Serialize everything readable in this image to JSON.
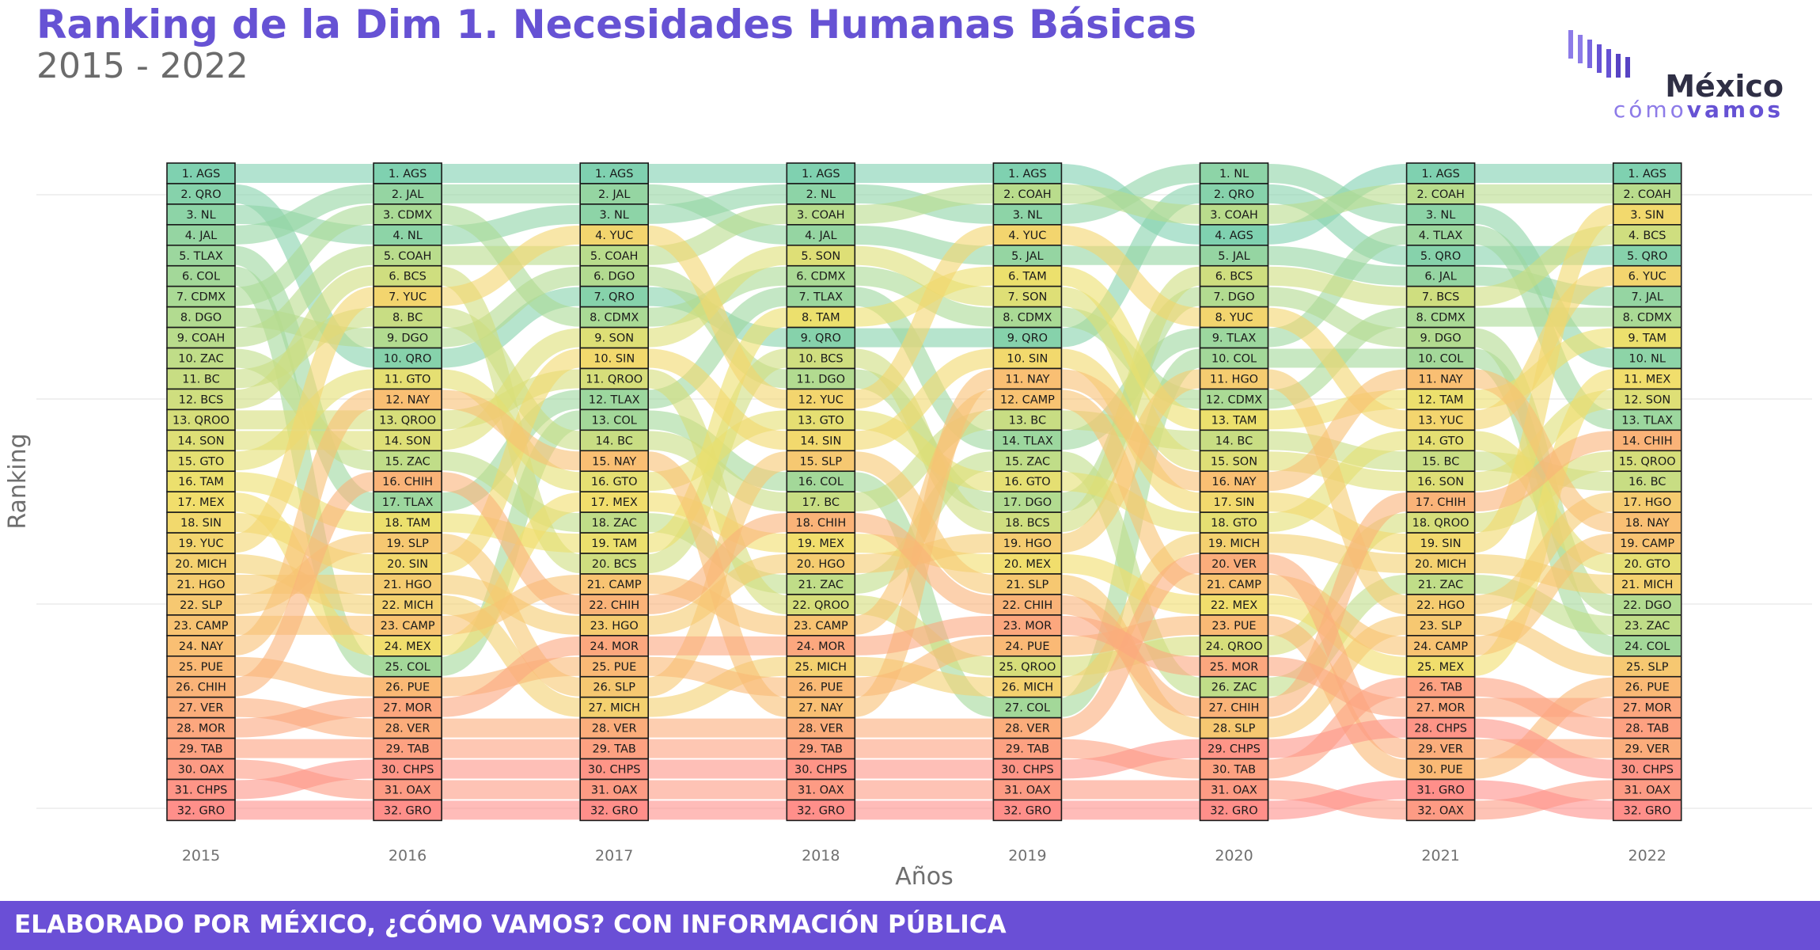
{
  "header": {
    "title": "Ranking de la Dim 1. Necesidades Humanas Básicas",
    "subtitle": "2015 - 2022"
  },
  "logo": {
    "line1": "México",
    "line2_a": "cómo",
    "line2_b": "vamos",
    "colors": [
      "#8d7be8",
      "#6652d4",
      "#3b3b5c"
    ]
  },
  "footer": {
    "text": "ELABORADO POR MÉXICO, ¿CÓMO VAMOS? CON INFORMACIÓN PÚBLICA",
    "color": "#6a4fd6"
  },
  "chart_data": {
    "type": "bump",
    "xlabel": "Años",
    "ylabel": "Ranking",
    "years": [
      "2015",
      "2016",
      "2017",
      "2018",
      "2019",
      "2020",
      "2021",
      "2022"
    ],
    "rankings": [
      [
        "AGS",
        "QRO",
        "NL",
        "JAL",
        "TLAX",
        "COL",
        "CDMX",
        "DGO",
        "COAH",
        "ZAC",
        "BC",
        "BCS",
        "QROO",
        "SON",
        "GTO",
        "TAM",
        "MEX",
        "SIN",
        "YUC",
        "MICH",
        "HGO",
        "SLP",
        "CAMP",
        "NAY",
        "PUE",
        "CHIH",
        "VER",
        "MOR",
        "TAB",
        "OAX",
        "CHPS",
        "GRO"
      ],
      [
        "AGS",
        "JAL",
        "CDMX",
        "NL",
        "COAH",
        "BCS",
        "YUC",
        "BC",
        "DGO",
        "QRO",
        "GTO",
        "NAY",
        "QROO",
        "SON",
        "ZAC",
        "CHIH",
        "TLAX",
        "TAM",
        "SLP",
        "SIN",
        "HGO",
        "MICH",
        "CAMP",
        "MEX",
        "COL",
        "PUE",
        "MOR",
        "VER",
        "TAB",
        "CHPS",
        "OAX",
        "GRO"
      ],
      [
        "AGS",
        "JAL",
        "NL",
        "YUC",
        "COAH",
        "DGO",
        "QRO",
        "CDMX",
        "SON",
        "SIN",
        "QROO",
        "TLAX",
        "COL",
        "BC",
        "NAY",
        "GTO",
        "MEX",
        "ZAC",
        "TAM",
        "BCS",
        "CAMP",
        "CHIH",
        "HGO",
        "MOR",
        "PUE",
        "SLP",
        "MICH",
        "VER",
        "TAB",
        "CHPS",
        "OAX",
        "GRO"
      ],
      [
        "AGS",
        "NL",
        "COAH",
        "JAL",
        "SON",
        "CDMX",
        "TLAX",
        "TAM",
        "QRO",
        "BCS",
        "DGO",
        "YUC",
        "GTO",
        "SIN",
        "SLP",
        "COL",
        "BC",
        "CHIH",
        "MEX",
        "HGO",
        "ZAC",
        "QROO",
        "CAMP",
        "MOR",
        "MICH",
        "PUE",
        "NAY",
        "VER",
        "TAB",
        "CHPS",
        "OAX",
        "GRO"
      ],
      [
        "AGS",
        "COAH",
        "NL",
        "YUC",
        "JAL",
        "TAM",
        "SON",
        "CDMX",
        "QRO",
        "SIN",
        "NAY",
        "CAMP",
        "BC",
        "TLAX",
        "ZAC",
        "GTO",
        "DGO",
        "BCS",
        "HGO",
        "MEX",
        "SLP",
        "CHIH",
        "MOR",
        "PUE",
        "QROO",
        "MICH",
        "COL",
        "VER",
        "TAB",
        "CHPS",
        "OAX",
        "GRO"
      ],
      [
        "NL",
        "QRO",
        "COAH",
        "AGS",
        "JAL",
        "BCS",
        "DGO",
        "YUC",
        "TLAX",
        "COL",
        "HGO",
        "CDMX",
        "TAM",
        "BC",
        "SON",
        "NAY",
        "SIN",
        "GTO",
        "MICH",
        "VER",
        "CAMP",
        "MEX",
        "PUE",
        "QROO",
        "MOR",
        "ZAC",
        "CHIH",
        "SLP",
        "CHPS",
        "TAB",
        "OAX",
        "GRO"
      ],
      [
        "AGS",
        "COAH",
        "NL",
        "TLAX",
        "QRO",
        "JAL",
        "BCS",
        "CDMX",
        "DGO",
        "COL",
        "NAY",
        "TAM",
        "YUC",
        "GTO",
        "BC",
        "SON",
        "CHIH",
        "QROO",
        "SIN",
        "MICH",
        "ZAC",
        "HGO",
        "SLP",
        "CAMP",
        "MEX",
        "TAB",
        "MOR",
        "CHPS",
        "VER",
        "PUE",
        "GRO",
        "OAX"
      ],
      [
        "AGS",
        "COAH",
        "SIN",
        "BCS",
        "QRO",
        "YUC",
        "JAL",
        "CDMX",
        "TAM",
        "NL",
        "MEX",
        "SON",
        "TLAX",
        "CHIH",
        "QROO",
        "BC",
        "HGO",
        "NAY",
        "CAMP",
        "GTO",
        "MICH",
        "DGO",
        "ZAC",
        "COL",
        "SLP",
        "PUE",
        "MOR",
        "TAB",
        "VER",
        "CHPS",
        "OAX",
        "GRO"
      ]
    ],
    "color_scale": [
      "#7fd1b0",
      "#b7dc8d",
      "#f0e06b",
      "#f9be73",
      "#ff8f8a"
    ],
    "grid": true
  }
}
